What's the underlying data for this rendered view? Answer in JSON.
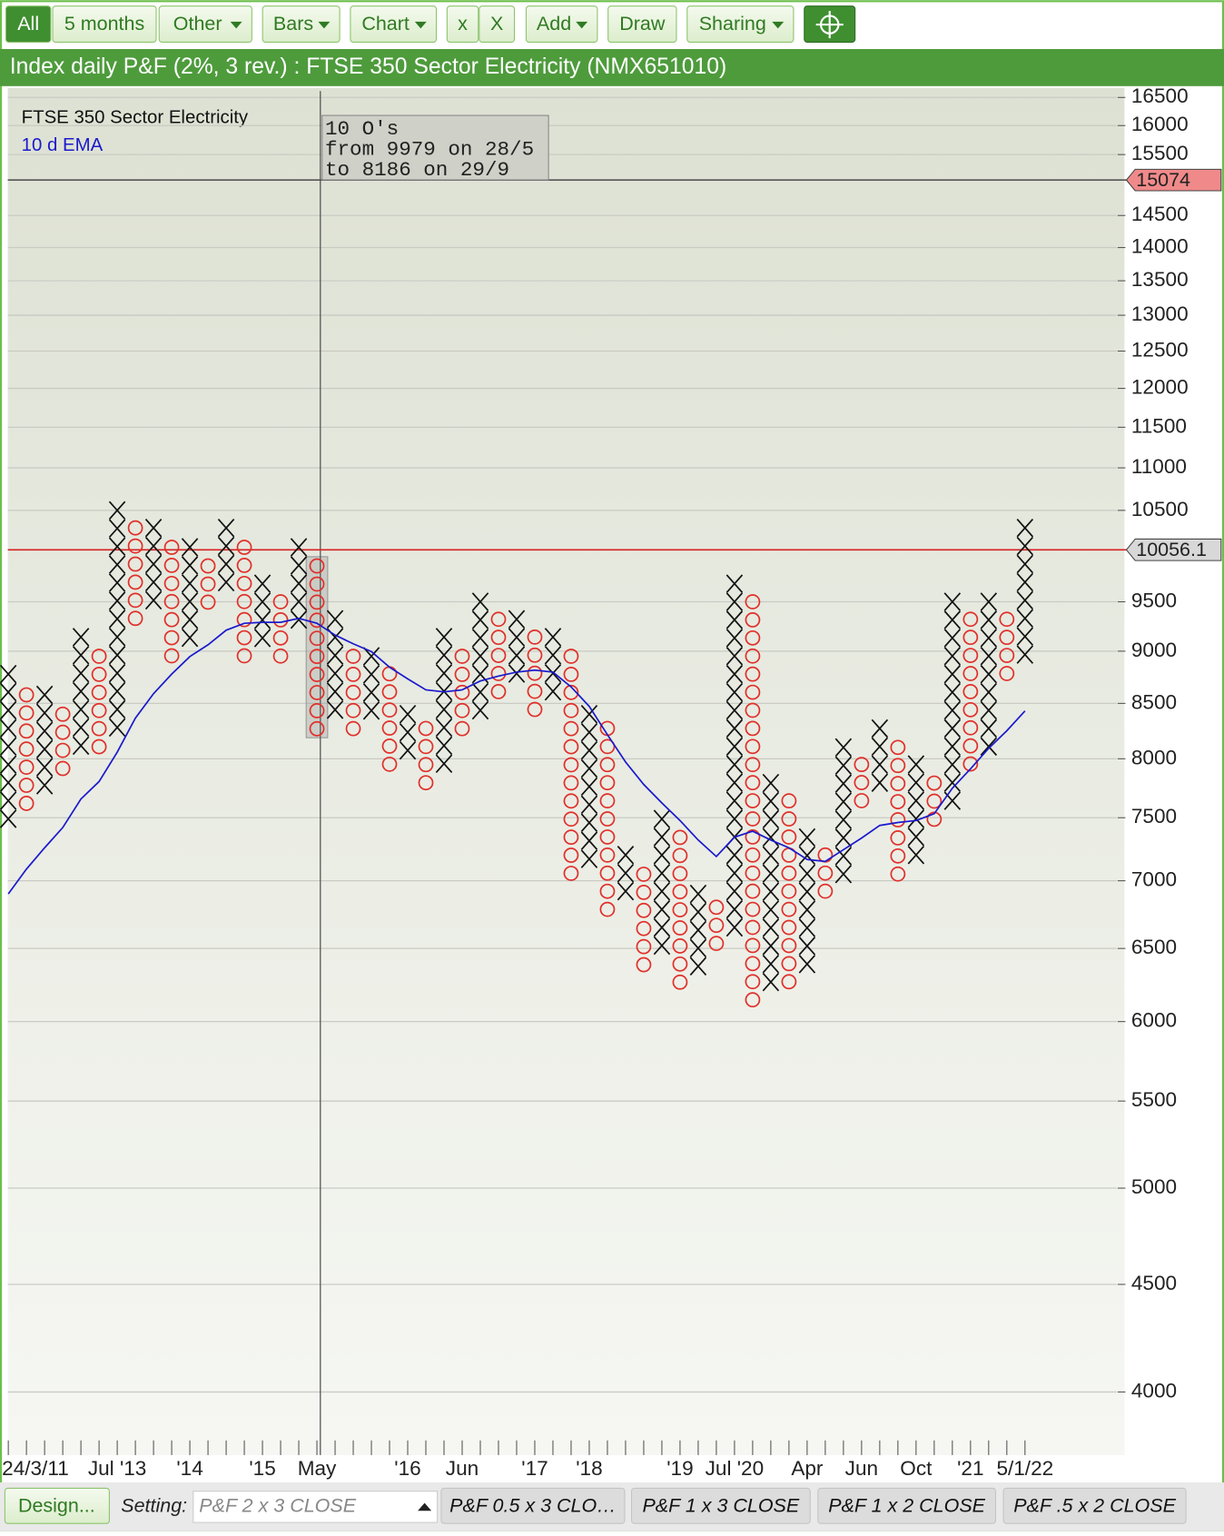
{
  "toolbar": {
    "buttons": [
      "All",
      "5 months",
      "Other",
      "Bars",
      "Chart",
      "x",
      "X",
      "Add",
      "Draw",
      "Sharing"
    ]
  },
  "chart_data": {
    "type": "pnf",
    "title": "Index daily P&F (2%, 3 rev.) : FTSE 350 Sector Electricity (NMX651010)",
    "box_size_percent": 2,
    "log_scale": true,
    "grid": true,
    "ylim": [
      3733,
      16670
    ],
    "yticks": [
      16500,
      16000,
      15500,
      14500,
      14000,
      13500,
      13000,
      12500,
      12000,
      11500,
      11000,
      10500,
      9500,
      9000,
      8500,
      8000,
      7500,
      7000,
      6500,
      6000,
      5500,
      5000,
      4500,
      4000
    ],
    "x_labels": [
      {
        "column": 0,
        "label": "24/3/11"
      },
      {
        "column": 6,
        "label": "Jul '13"
      },
      {
        "column": 10,
        "label": "'14"
      },
      {
        "column": 14,
        "label": "'15"
      },
      {
        "column": 17,
        "label": "May"
      },
      {
        "column": 22,
        "label": "'16"
      },
      {
        "column": 25,
        "label": "Jun"
      },
      {
        "column": 29,
        "label": "'17"
      },
      {
        "column": 32,
        "label": "'18"
      },
      {
        "column": 37,
        "label": "'19"
      },
      {
        "column": 40,
        "label": "Jul '20"
      },
      {
        "column": 44,
        "label": "Apr"
      },
      {
        "column": 47,
        "label": "Jun"
      },
      {
        "column": 50,
        "label": "Oct"
      },
      {
        "column": 53,
        "label": "'21"
      },
      {
        "column": 56,
        "label": "5/1/22"
      }
    ],
    "series": [
      {
        "name": "FTSE 350 Sector Electricity",
        "x_color": "#111111",
        "o_color": "#e0302a",
        "columns": [
          {
            "kind": "X",
            "high": 8777,
            "low": 7477
          },
          {
            "kind": "O",
            "high": 8580,
            "low": 7640
          },
          {
            "kind": "X",
            "high": 8580,
            "low": 7790
          },
          {
            "kind": "O",
            "high": 8400,
            "low": 7950
          },
          {
            "kind": "X",
            "high": 9140,
            "low": 8100
          },
          {
            "kind": "O",
            "high": 8950,
            "low": 8100
          },
          {
            "kind": "X",
            "high": 10500,
            "low": 8250
          },
          {
            "kind": "O",
            "high": 10300,
            "low": 9320
          },
          {
            "kind": "X",
            "high": 10300,
            "low": 9500
          },
          {
            "kind": "O",
            "high": 10084,
            "low": 8940
          },
          {
            "kind": "X",
            "high": 10084,
            "low": 9110
          },
          {
            "kind": "O",
            "high": 9880,
            "low": 9500
          },
          {
            "kind": "X",
            "high": 10300,
            "low": 9690
          },
          {
            "kind": "O",
            "high": 10084,
            "low": 8940
          },
          {
            "kind": "X",
            "high": 9690,
            "low": 9140
          },
          {
            "kind": "O",
            "high": 9500,
            "low": 8940
          },
          {
            "kind": "X",
            "high": 10084,
            "low": 9320
          },
          {
            "kind": "O",
            "high": 9880,
            "low": 8270
          },
          {
            "kind": "X",
            "high": 9320,
            "low": 8400
          },
          {
            "kind": "O",
            "high": 8950,
            "low": 8270
          },
          {
            "kind": "X",
            "high": 8950,
            "low": 8400
          },
          {
            "kind": "O",
            "high": 8780,
            "low": 7950
          },
          {
            "kind": "X",
            "high": 8400,
            "low": 8100
          },
          {
            "kind": "O",
            "high": 8270,
            "low": 7790
          },
          {
            "kind": "X",
            "high": 9140,
            "low": 7950
          },
          {
            "kind": "O",
            "high": 8950,
            "low": 8270
          },
          {
            "kind": "X",
            "high": 9500,
            "low": 8400
          },
          {
            "kind": "O",
            "high": 9320,
            "low": 8580
          },
          {
            "kind": "X",
            "high": 9320,
            "low": 8780
          },
          {
            "kind": "O",
            "high": 9140,
            "low": 8400
          },
          {
            "kind": "X",
            "high": 9140,
            "low": 8580
          },
          {
            "kind": "O",
            "high": 8950,
            "low": 7050
          },
          {
            "kind": "X",
            "high": 8400,
            "low": 7200
          },
          {
            "kind": "O",
            "high": 8270,
            "low": 6800
          },
          {
            "kind": "X",
            "high": 7200,
            "low": 6900
          },
          {
            "kind": "O",
            "high": 7050,
            "low": 6380
          },
          {
            "kind": "X",
            "high": 7490,
            "low": 6520
          },
          {
            "kind": "O",
            "high": 7340,
            "low": 6270
          },
          {
            "kind": "X",
            "high": 6900,
            "low": 6380
          },
          {
            "kind": "O",
            "high": 6800,
            "low": 6520
          },
          {
            "kind": "X",
            "high": 9690,
            "low": 6650
          },
          {
            "kind": "O",
            "high": 9500,
            "low": 6140
          },
          {
            "kind": "X",
            "high": 7790,
            "low": 6270
          },
          {
            "kind": "O",
            "high": 7640,
            "low": 6270
          },
          {
            "kind": "X",
            "high": 7340,
            "low": 6380
          },
          {
            "kind": "O",
            "high": 7200,
            "low": 6900
          },
          {
            "kind": "X",
            "high": 8100,
            "low": 7050
          },
          {
            "kind": "O",
            "high": 7950,
            "low": 7640
          },
          {
            "kind": "X",
            "high": 8270,
            "low": 7790
          },
          {
            "kind": "O",
            "high": 8100,
            "low": 7050
          },
          {
            "kind": "X",
            "high": 7950,
            "low": 7200
          },
          {
            "kind": "O",
            "high": 7790,
            "low": 7490
          },
          {
            "kind": "X",
            "high": 9500,
            "low": 7640
          },
          {
            "kind": "O",
            "high": 9320,
            "low": 7950
          },
          {
            "kind": "X",
            "high": 9500,
            "low": 8100
          },
          {
            "kind": "O",
            "high": 9320,
            "low": 8780
          },
          {
            "kind": "X",
            "high": 10300,
            "low": 8950
          }
        ]
      },
      {
        "name": "10 d EMA",
        "color": "#1a1acc",
        "values": [
          6900,
          7090,
          7257,
          7420,
          7655,
          7803,
          8058,
          8364,
          8591,
          8777,
          8947,
          9063,
          9209,
          9279,
          9289,
          9289,
          9329,
          9279,
          9160,
          9073,
          8996,
          8843,
          8731,
          8627,
          8608,
          8627,
          8711,
          8758,
          8796,
          8815,
          8796,
          8655,
          8472,
          8214,
          7972,
          7778,
          7622,
          7477,
          7319,
          7188,
          7342,
          7390,
          7319,
          7257,
          7165,
          7150,
          7242,
          7335,
          7437,
          7461,
          7477,
          7533,
          7746,
          7912,
          8092,
          8249,
          8430
        ]
      }
    ],
    "reference_lines": [
      {
        "value": 15074,
        "color": "#555555",
        "badge_color": "#f08a8a"
      },
      {
        "value": 10056.1,
        "color": "#d62020",
        "badge_color": "#d8d8d8"
      }
    ],
    "annotation": {
      "column": 17,
      "lines": [
        "10 O's",
        "from 9979 on 28/5",
        "to 8186 on 29/9"
      ]
    }
  },
  "footer": {
    "design": "Design...",
    "setting_label": "Setting:",
    "setting_value": "P&F 2 x 3 CLOSE",
    "presets": [
      "P&F 0.5 x 3 CLO…",
      "P&F 1 x 3 CLOSE",
      "P&F 1 x 2 CLOSE",
      "P&F .5 x 2 CLOSE"
    ]
  }
}
